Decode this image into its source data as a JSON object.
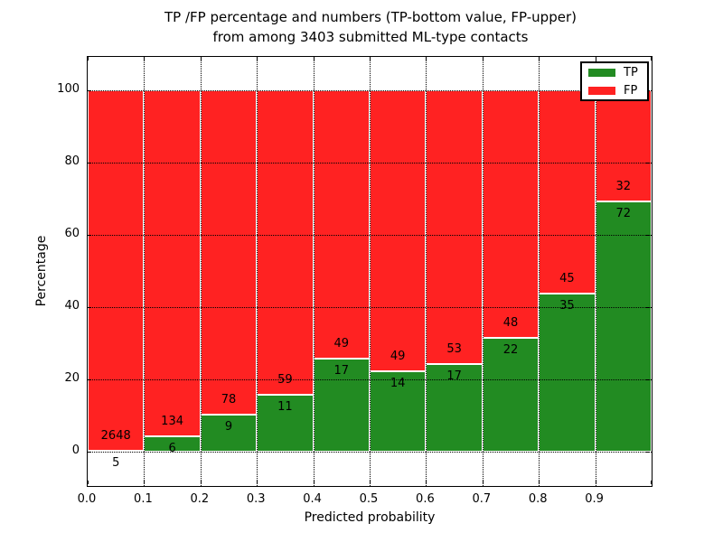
{
  "title": {
    "line1": "TP /FP percentage and numbers (TP-bottom value, FP-upper)",
    "line2": "from among 3403 submitted ML-type contacts"
  },
  "chart_data": {
    "type": "bar",
    "subtype": "stacked-percentage-histogram",
    "title": "TP /FP percentage and numbers (TP-bottom value, FP-upper) from among 3403 submitted ML-type contacts",
    "total_contacts": 3403,
    "xlabel": "Predicted probability",
    "ylabel": "Percentage",
    "xlim": [
      0.0,
      1.0
    ],
    "ylim": [
      -10,
      109
    ],
    "grid": true,
    "bin_width": 0.1,
    "bin_starts": [
      0.0,
      0.1,
      0.2,
      0.3,
      0.4,
      0.5,
      0.6,
      0.7,
      0.8,
      0.9
    ],
    "xtick_labels": [
      "0.0",
      "0.1",
      "0.2",
      "0.3",
      "0.4",
      "0.5",
      "0.6",
      "0.7",
      "0.8",
      "0.9"
    ],
    "ytick_values": [
      0,
      20,
      40,
      60,
      80,
      100
    ],
    "series": [
      {
        "name": "TP",
        "color": "#228b22",
        "counts": [
          5,
          6,
          9,
          11,
          17,
          14,
          17,
          22,
          35,
          72
        ],
        "percent": [
          0.19,
          4.29,
          10.34,
          15.71,
          25.76,
          22.22,
          24.29,
          31.43,
          43.75,
          69.23
        ]
      },
      {
        "name": "FP",
        "color": "#ff2222",
        "counts": [
          2648,
          134,
          78,
          59,
          49,
          49,
          53,
          48,
          45,
          32
        ],
        "percent": [
          99.81,
          95.71,
          89.66,
          84.29,
          74.24,
          77.78,
          75.71,
          68.57,
          56.25,
          30.77
        ]
      }
    ],
    "legend": {
      "position": "upper right",
      "entries": [
        {
          "label": "TP",
          "color": "#228b22"
        },
        {
          "label": "FP",
          "color": "#ff2222"
        }
      ]
    }
  }
}
